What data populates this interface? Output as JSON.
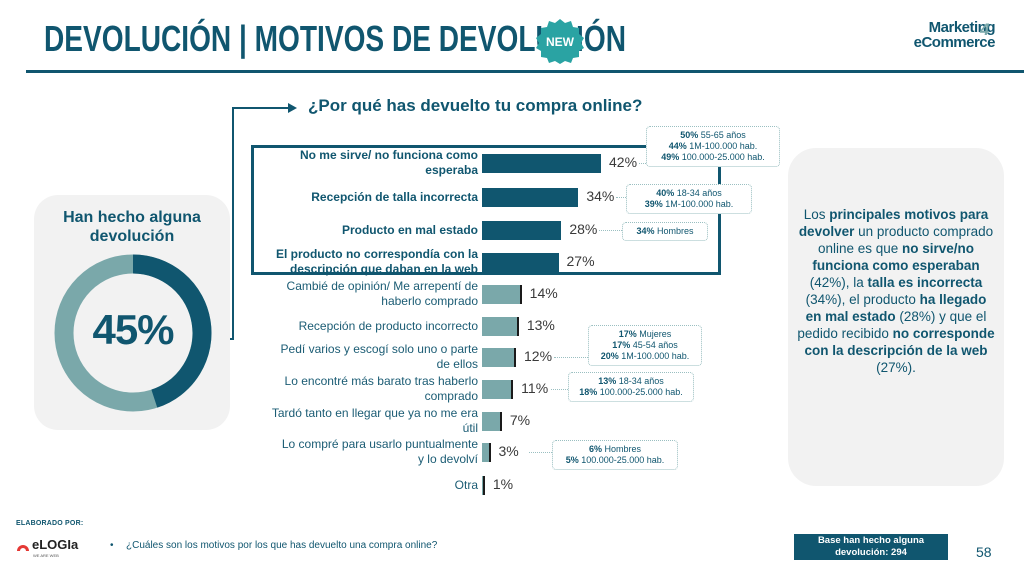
{
  "header": {
    "title": "DEVOLUCIÓN | MOTIVOS DE DEVOLUCIÓN",
    "badge": "NEW",
    "brand_line1": "Marketing",
    "brand_line2": "eCommerce",
    "brand_mark": "4"
  },
  "left_panel": {
    "title": "Han hecho alguna devolución",
    "value_label": "45%",
    "value": 45
  },
  "question": "¿Por qué has devuelto tu compra online?",
  "colors": {
    "primary": "#10566f",
    "secondary": "#7aa8aa",
    "panel": "#f2f2f2"
  },
  "chart_data": {
    "type": "bar",
    "orientation": "horizontal",
    "title": "¿Por qué has devuelto tu compra online?",
    "xlabel": "",
    "ylabel": "",
    "xlim": [
      0,
      100
    ],
    "unit": "%",
    "categories": [
      "No me sirve/ no funciona como esperaba",
      "Recepción de talla incorrecta",
      "Producto en mal estado",
      "El producto no correspondía con la descripción que daban en la web",
      "Cambié de opinión/ Me arrepentí de haberlo comprado",
      "Recepción de producto incorrecto",
      "Pedí varios y escogí solo uno o parte de ellos",
      "Lo encontré más barato tras haberlo comprado",
      "Tardó tanto en llegar que ya no me era útil",
      "Lo compré para usarlo puntualmente y lo devolví",
      "Otra"
    ],
    "labels_lines": [
      [
        "No me sirve/ no funciona como",
        "esperaba"
      ],
      [
        "Recepción de talla incorrecta"
      ],
      [
        "Producto en mal estado"
      ],
      [
        "El producto no correspondía con la",
        "descripción que daban en la web"
      ],
      [
        "Cambié de opinión/ Me arrepentí de",
        "haberlo comprado"
      ],
      [
        "Recepción de producto incorrecto"
      ],
      [
        "Pedí varios y escogí solo uno o parte",
        "de ellos"
      ],
      [
        "Lo encontré más barato tras haberlo",
        "comprado"
      ],
      [
        "Tardó tanto en llegar que ya no me era",
        "útil"
      ],
      [
        "Lo compré para usarlo puntualmente",
        "y lo devolví"
      ],
      [
        "Otra"
      ]
    ],
    "values": [
      42,
      34,
      28,
      27,
      14,
      13,
      12,
      11,
      7,
      3,
      1
    ],
    "value_labels": [
      "42%",
      "34%",
      "28%",
      "27%",
      "14%",
      "13%",
      "12%",
      "11%",
      "7%",
      "3%",
      "1%"
    ],
    "highlighted_top": 4,
    "callouts": [
      {
        "row": 0,
        "items": [
          {
            "pct": "50%",
            "text": "55-65 años"
          },
          {
            "pct": "44%",
            "text": "1M-100.000 hab."
          },
          {
            "pct": "49%",
            "text": "100.000-25.000 hab."
          }
        ]
      },
      {
        "row": 1,
        "items": [
          {
            "pct": "40%",
            "text": "18-34 años"
          },
          {
            "pct": "39%",
            "text": "1M-100.000 hab."
          }
        ]
      },
      {
        "row": 2,
        "items": [
          {
            "pct": "34%",
            "text": "Hombres"
          }
        ]
      },
      {
        "row": 6,
        "items": [
          {
            "pct": "17%",
            "text": "Mujeres"
          },
          {
            "pct": "17%",
            "text": "45-54 años"
          },
          {
            "pct": "20%",
            "text": "1M-100.000 hab."
          }
        ]
      },
      {
        "row": 7,
        "items": [
          {
            "pct": "13%",
            "text": "18-34 años"
          },
          {
            "pct": "18%",
            "text": "100.000-25.000 hab."
          }
        ]
      },
      {
        "row": 9,
        "items": [
          {
            "pct": "6%",
            "text": "Hombres"
          },
          {
            "pct": "5%",
            "text": "100.000-25.000 hab."
          }
        ]
      }
    ]
  },
  "right_panel": {
    "segments": [
      {
        "t": "Los ",
        "b": false
      },
      {
        "t": "principales motivos para devolver",
        "b": true
      },
      {
        "t": " un producto comprado online es que ",
        "b": false
      },
      {
        "t": "no sirve/no funciona como esperaban",
        "b": true
      },
      {
        "t": " (42%), la ",
        "b": false
      },
      {
        "t": "talla es incorrecta",
        "b": true
      },
      {
        "t": " (34%), el producto ",
        "b": false
      },
      {
        "t": "ha llegado en mal estado",
        "b": true
      },
      {
        "t": " (28%) y que el pedido recibido ",
        "b": false
      },
      {
        "t": "no corresponde con la descripción de la web",
        "b": true
      },
      {
        "t": " (27%).",
        "b": false
      }
    ]
  },
  "footer": {
    "elaborado": "ELABORADO POR:",
    "company": "eLOGIa",
    "company_sub": "WE ARE WEB",
    "bullet": "•",
    "question": "¿Cuáles son los motivos por los que has devuelto una compra online?",
    "base_line1": "Base han hecho alguna",
    "base_line2": "devolución: 294",
    "page": "58"
  }
}
